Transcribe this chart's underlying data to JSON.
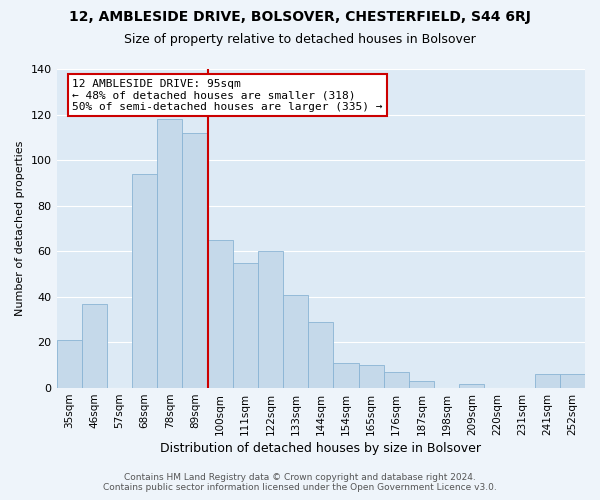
{
  "title": "12, AMBLESIDE DRIVE, BOLSOVER, CHESTERFIELD, S44 6RJ",
  "subtitle": "Size of property relative to detached houses in Bolsover",
  "xlabel": "Distribution of detached houses by size in Bolsover",
  "ylabel": "Number of detached properties",
  "bin_labels": [
    "35sqm",
    "46sqm",
    "57sqm",
    "68sqm",
    "78sqm",
    "89sqm",
    "100sqm",
    "111sqm",
    "122sqm",
    "133sqm",
    "144sqm",
    "154sqm",
    "165sqm",
    "176sqm",
    "187sqm",
    "198sqm",
    "209sqm",
    "220sqm",
    "231sqm",
    "241sqm",
    "252sqm"
  ],
  "bar_heights": [
    21,
    37,
    0,
    94,
    118,
    112,
    65,
    55,
    60,
    41,
    29,
    11,
    10,
    7,
    3,
    0,
    2,
    0,
    0,
    6,
    6
  ],
  "bar_color": "#c5d9ea",
  "bar_edge_color": "#8ab4d4",
  "vline_x": 5.5,
  "vline_color": "#cc0000",
  "annotation_text": "12 AMBLESIDE DRIVE: 95sqm\n← 48% of detached houses are smaller (318)\n50% of semi-detached houses are larger (335) →",
  "annotation_box_facecolor": "#ffffff",
  "annotation_box_edgecolor": "#cc0000",
  "ylim": [
    0,
    140
  ],
  "yticks": [
    0,
    20,
    40,
    60,
    80,
    100,
    120,
    140
  ],
  "footer_line1": "Contains HM Land Registry data © Crown copyright and database right 2024.",
  "footer_line2": "Contains public sector information licensed under the Open Government Licence v3.0.",
  "bg_color": "#eef4fa",
  "plot_bg_color": "#ddeaf5",
  "grid_color": "#ffffff",
  "title_fontsize": 10,
  "subtitle_fontsize": 9,
  "xlabel_fontsize": 9,
  "ylabel_fontsize": 8,
  "tick_fontsize": 7.5,
  "annotation_fontsize": 8,
  "footer_fontsize": 6.5
}
